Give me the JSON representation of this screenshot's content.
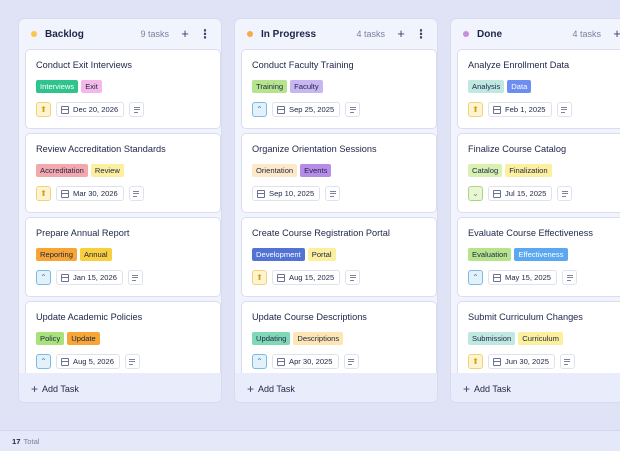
{
  "columns": [
    {
      "title": "Backlog",
      "dot_color": "#f7c84a",
      "count": "9 tasks",
      "add_label": "Add Task",
      "cards": [
        {
          "title": "Conduct Exit Interviews",
          "tags": [
            {
              "label": "Interviews",
              "bg": "#2fc48d",
              "fg": "#ffffff"
            },
            {
              "label": "Exit",
              "bg": "#f4b9e9",
              "fg": "#1f2547"
            }
          ],
          "priority": "high",
          "date": "Dec 20, 2026"
        },
        {
          "title": "Review Accreditation Standards",
          "tags": [
            {
              "label": "Accreditation",
              "bg": "#f3a8ad",
              "fg": "#1f2547"
            },
            {
              "label": "Review",
              "bg": "#fcef9e",
              "fg": "#1f2547"
            }
          ],
          "priority": "high",
          "date": "Mar 30, 2026"
        },
        {
          "title": "Prepare Annual Report",
          "tags": [
            {
              "label": "Reporting",
              "bg": "#f7a635",
              "fg": "#1f2547"
            },
            {
              "label": "Annual",
              "bg": "#f8cf3c",
              "fg": "#1f2547"
            }
          ],
          "priority": "medium",
          "date": "Jan 15, 2026"
        },
        {
          "title": "Update Academic Policies",
          "tags": [
            {
              "label": "Policy",
              "bg": "#a9e27a",
              "fg": "#1f2547"
            },
            {
              "label": "Update",
              "bg": "#f7a635",
              "fg": "#1f2547"
            }
          ],
          "priority": "medium",
          "date": "Aug 5, 2026"
        }
      ]
    },
    {
      "title": "In Progress",
      "dot_color": "#f8a94a",
      "count": "4 tasks",
      "add_label": "Add Task",
      "cards": [
        {
          "title": "Conduct Faculty Training",
          "tags": [
            {
              "label": "Training",
              "bg": "#b5e48c",
              "fg": "#1f2547"
            },
            {
              "label": "Faculty",
              "bg": "#c8b6f2",
              "fg": "#1f2547"
            }
          ],
          "priority": "medium",
          "date": "Sep 25, 2025"
        },
        {
          "title": "Organize Orientation Sessions",
          "tags": [
            {
              "label": "Orientation",
              "bg": "#fde8c8",
              "fg": "#1f2547"
            },
            {
              "label": "Events",
              "bg": "#b78ce8",
              "fg": "#1f2547"
            }
          ],
          "priority": "none",
          "date": "Sep 10, 2025"
        },
        {
          "title": "Create Course Registration Portal",
          "tags": [
            {
              "label": "Development",
              "bg": "#5273d4",
              "fg": "#ffffff"
            },
            {
              "label": "Portal",
              "bg": "#fcef9e",
              "fg": "#1f2547"
            }
          ],
          "priority": "high",
          "date": "Aug 15, 2025"
        },
        {
          "title": "Update Course Descriptions",
          "tags": [
            {
              "label": "Updating",
              "bg": "#7fd8b6",
              "fg": "#1f2547"
            },
            {
              "label": "Descriptions",
              "bg": "#fde6b4",
              "fg": "#1f2547"
            }
          ],
          "priority": "medium",
          "date": "Apr 30, 2025"
        }
      ]
    },
    {
      "title": "Done",
      "dot_color": "#c98ee0",
      "count": "4 tasks",
      "add_label": "Add Task",
      "cards": [
        {
          "title": "Analyze Enrollment Data",
          "tags": [
            {
              "label": "Analysis",
              "bg": "#bfe8e0",
              "fg": "#1f2547"
            },
            {
              "label": "Data",
              "bg": "#6c8ef0",
              "fg": "#ffffff"
            }
          ],
          "priority": "high",
          "date": "Feb 1, 2025"
        },
        {
          "title": "Finalize Course Catalog",
          "tags": [
            {
              "label": "Catalog",
              "bg": "#d8f0b0",
              "fg": "#1f2547"
            },
            {
              "label": "Finalization",
              "bg": "#fcef9e",
              "fg": "#1f2547"
            }
          ],
          "priority": "low",
          "date": "Jul 15, 2025"
        },
        {
          "title": "Evaluate Course Effectiveness",
          "tags": [
            {
              "label": "Evaluation",
              "bg": "#b5e48c",
              "fg": "#1f2547"
            },
            {
              "label": "Effectiveness",
              "bg": "#5ba8f0",
              "fg": "#ffffff"
            }
          ],
          "priority": "medium",
          "date": "May 15, 2025"
        },
        {
          "title": "Submit Curriculum Changes",
          "tags": [
            {
              "label": "Submission",
              "bg": "#bfe8e0",
              "fg": "#1f2547"
            },
            {
              "label": "Curriculum",
              "bg": "#fcef9e",
              "fg": "#1f2547"
            }
          ],
          "priority": "high",
          "date": "Jun 30, 2025"
        }
      ]
    }
  ],
  "priority_styles": {
    "high": {
      "icon": "double-chevron-up-icon",
      "glyph": "⬆",
      "bg": "#fff4d0",
      "border": "#f1d27a",
      "fg": "#d99b14"
    },
    "medium": {
      "icon": "chevron-up-icon",
      "glyph": "⌃",
      "bg": "#e3f1fb",
      "border": "#7db9e5",
      "fg": "#2e7fc2"
    },
    "low": {
      "icon": "chevron-down-icon",
      "glyph": "⌄",
      "bg": "#e8f6d6",
      "border": "#a8d77d",
      "fg": "#5f9d2e"
    }
  },
  "header_icons": {
    "add": "+",
    "menu": "⋮"
  },
  "footer": {
    "total_count": "17",
    "total_label": "Total"
  }
}
